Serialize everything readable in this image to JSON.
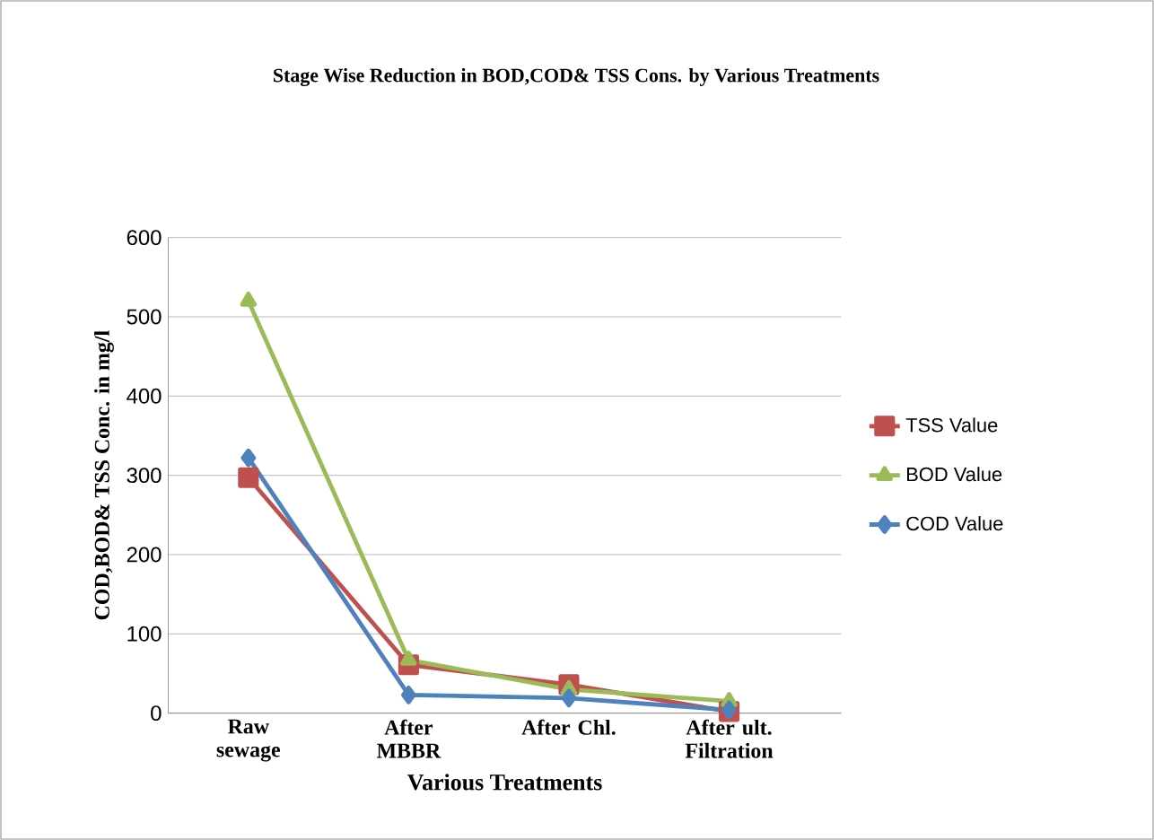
{
  "chart_data": {
    "type": "line",
    "title": "Stage Wise Reduction in BOD,COD& TSS Cons. by Various Treatments",
    "xlabel": "Various Treatments",
    "ylabel": "COD,BOD& TSS Conc. in mg/l",
    "categories": [
      "Raw sewage",
      "After MBBR",
      "After Chl.",
      "After ult. Filtration"
    ],
    "series": [
      {
        "name": "TSS Value",
        "color": "#c0504d",
        "marker": "square",
        "values": [
          297,
          61,
          36,
          2
        ]
      },
      {
        "name": "BOD Value",
        "color": "#9bbb59",
        "marker": "triangle",
        "values": [
          520,
          67,
          30,
          15
        ]
      },
      {
        "name": "COD Value",
        "color": "#4f81bd",
        "marker": "diamond",
        "values": [
          322,
          23,
          19,
          4
        ]
      }
    ],
    "ylim": [
      0,
      600
    ],
    "yticks": [
      0,
      100,
      200,
      300,
      400,
      500,
      600
    ],
    "grid": "y",
    "legend": "right"
  }
}
